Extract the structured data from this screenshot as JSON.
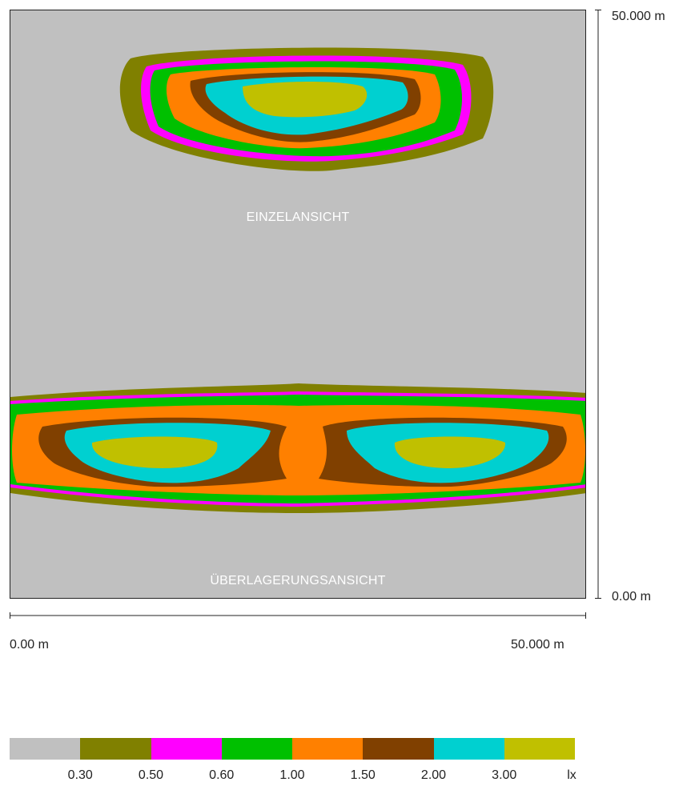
{
  "views": {
    "single_label": "EINZELANSICHT",
    "overlay_label": "ÜBERLAGERUNGSANSICHT"
  },
  "scale": {
    "y_top": "50.000 m",
    "y_bottom": "0.00 m",
    "x_left": "0.00 m",
    "x_right": "50.000 m"
  },
  "legend": {
    "unit": "lx",
    "colors": [
      "#c0c0c0",
      "#808000",
      "#ff00ff",
      "#00c000",
      "#ff8000",
      "#804000",
      "#00d0d0",
      "#c0c000"
    ],
    "labels": [
      "0.30",
      "0.50",
      "0.60",
      "1.00",
      "1.50",
      "2.00",
      "3.00"
    ]
  }
}
